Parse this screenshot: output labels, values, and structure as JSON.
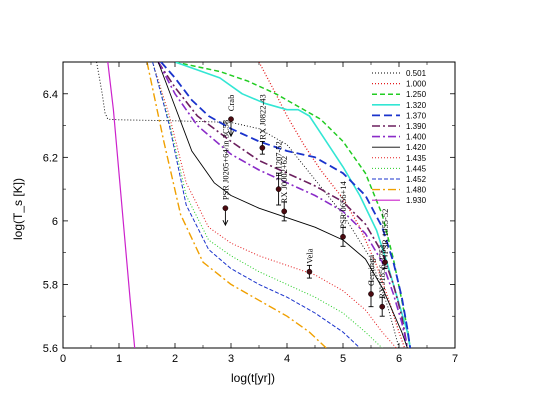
{
  "chart_data": {
    "type": "line",
    "xlabel": "log(t[yr])",
    "ylabel": "log(T_s [K])",
    "xlim": [
      0,
      7
    ],
    "ylim": [
      5.6,
      6.5
    ],
    "xticks": [
      "0",
      "1",
      "2",
      "3",
      "4",
      "5",
      "6",
      "7"
    ],
    "yticks": [
      "5.6",
      "5.8",
      "6",
      "6.2",
      "6.4"
    ],
    "legend_position": "top-right",
    "series": [
      {
        "name": "0.501",
        "color": "#000000",
        "dash": "1,2",
        "width": 0.9,
        "x": [
          0.6,
          0.7,
          0.75,
          0.8,
          1.0,
          2.0,
          3.0,
          3.5,
          4.0,
          4.5,
          5.0,
          5.5,
          5.8,
          6.0
        ],
        "y": [
          6.5,
          6.4,
          6.34,
          6.32,
          6.318,
          6.315,
          6.31,
          6.29,
          6.24,
          6.13,
          6.02,
          5.88,
          5.73,
          5.6
        ]
      },
      {
        "name": "1.000",
        "color": "#e41a1c",
        "dash": "1,2",
        "width": 1.3,
        "x": [
          3.5,
          3.8,
          4.0,
          4.3,
          4.6,
          5.0,
          5.3,
          5.6,
          5.8,
          6.0,
          6.1
        ],
        "y": [
          6.5,
          6.4,
          6.33,
          6.24,
          6.16,
          6.07,
          5.98,
          5.86,
          5.76,
          5.65,
          5.6
        ]
      },
      {
        "name": "1.250",
        "color": "#22cc22",
        "dash": "5,3",
        "width": 1.5,
        "x": [
          2.0,
          2.8,
          3.3,
          3.8,
          4.2,
          4.6,
          5.0,
          5.4,
          5.7,
          5.9,
          6.05,
          6.15,
          6.2
        ],
        "y": [
          6.5,
          6.47,
          6.44,
          6.4,
          6.36,
          6.32,
          6.25,
          6.15,
          6.02,
          5.88,
          5.75,
          5.66,
          5.6
        ]
      },
      {
        "name": "1.320",
        "color": "#33e6d4",
        "dash": "",
        "width": 1.6,
        "x": [
          2.0,
          2.8,
          3.2,
          3.6,
          4.0,
          4.2,
          4.4,
          4.7,
          5.0,
          5.3,
          5.6,
          5.8,
          6.0,
          6.15,
          6.2
        ],
        "y": [
          6.5,
          6.45,
          6.4,
          6.37,
          6.35,
          6.35,
          6.33,
          6.25,
          6.17,
          6.08,
          5.97,
          5.86,
          5.74,
          5.65,
          5.6
        ]
      },
      {
        "name": "1.370",
        "color": "#1a33cc",
        "dash": "8,4",
        "width": 1.8,
        "x": [
          1.75,
          2.0,
          2.3,
          2.6,
          3.0,
          3.5,
          4.0,
          4.5,
          5.0,
          5.4,
          5.7,
          5.9,
          6.05,
          6.15,
          6.2
        ],
        "y": [
          6.5,
          6.45,
          6.38,
          6.33,
          6.29,
          6.25,
          6.22,
          6.2,
          6.15,
          6.08,
          5.98,
          5.87,
          5.76,
          5.66,
          5.6
        ]
      },
      {
        "name": "1.390",
        "color": "#6b1f5e",
        "dash": "8,3,2,3",
        "width": 1.6,
        "x": [
          1.7,
          2.0,
          2.4,
          3.0,
          3.5,
          4.0,
          4.5,
          5.0,
          5.4,
          5.7,
          5.9,
          6.05,
          6.15
        ],
        "y": [
          6.5,
          6.42,
          6.33,
          6.25,
          6.19,
          6.15,
          6.11,
          6.06,
          5.99,
          5.9,
          5.8,
          5.7,
          5.6
        ]
      },
      {
        "name": "1.400",
        "color": "#8a2bc8",
        "dash": "8,3,2,3",
        "width": 1.6,
        "x": [
          1.7,
          2.0,
          2.4,
          3.0,
          3.5,
          4.0,
          4.5,
          5.0,
          5.4,
          5.7,
          5.9,
          6.05,
          6.15
        ],
        "y": [
          6.5,
          6.4,
          6.3,
          6.21,
          6.16,
          6.12,
          6.08,
          6.03,
          5.96,
          5.87,
          5.77,
          5.68,
          5.6
        ]
      },
      {
        "name": "1.420",
        "color": "#000000",
        "dash": "",
        "width": 0.9,
        "x": [
          1.7,
          2.0,
          2.3,
          2.7,
          3.0,
          3.5,
          4.0,
          4.5,
          5.0,
          5.4,
          5.7,
          5.9,
          6.05,
          6.15
        ],
        "y": [
          6.5,
          6.36,
          6.22,
          6.12,
          6.08,
          6.04,
          6.01,
          5.98,
          5.94,
          5.88,
          5.79,
          5.71,
          5.65,
          5.6
        ]
      },
      {
        "name": "1.435",
        "color": "#e41a1c",
        "dash": "1,2",
        "width": 1.0,
        "x": [
          1.6,
          1.9,
          2.2,
          2.6,
          3.0,
          3.5,
          4.0,
          4.5,
          5.0,
          5.4,
          5.7,
          5.95
        ],
        "y": [
          6.5,
          6.33,
          6.12,
          5.98,
          5.93,
          5.89,
          5.86,
          5.83,
          5.78,
          5.72,
          5.65,
          5.6
        ]
      },
      {
        "name": "1.445",
        "color": "#22cc22",
        "dash": "1,2",
        "width": 1.0,
        "x": [
          1.6,
          1.9,
          2.2,
          2.6,
          3.0,
          3.5,
          4.0,
          4.5,
          5.0,
          5.4,
          5.7
        ],
        "y": [
          6.5,
          6.31,
          6.08,
          5.94,
          5.89,
          5.84,
          5.8,
          5.76,
          5.71,
          5.65,
          5.6
        ]
      },
      {
        "name": "1.452",
        "color": "#1a33cc",
        "dash": "4,2",
        "width": 1.0,
        "x": [
          1.6,
          1.9,
          2.2,
          2.6,
          3.0,
          3.5,
          4.0,
          4.5,
          5.0,
          5.3
        ],
        "y": [
          6.5,
          6.3,
          6.05,
          5.91,
          5.85,
          5.8,
          5.76,
          5.71,
          5.65,
          5.6
        ]
      },
      {
        "name": "1.480",
        "color": "#f0a000",
        "dash": "8,3,2,3",
        "width": 1.4,
        "x": [
          1.5,
          1.8,
          2.1,
          2.5,
          3.0,
          3.5,
          4.0,
          4.4,
          4.7
        ],
        "y": [
          6.5,
          6.25,
          6.02,
          5.87,
          5.8,
          5.75,
          5.7,
          5.65,
          5.6
        ]
      },
      {
        "name": "1.930",
        "color": "#cc22cc",
        "dash": "",
        "width": 1.2,
        "x": [
          0.8,
          0.9,
          1.0,
          1.1,
          1.2,
          1.28
        ],
        "y": [
          6.5,
          6.35,
          6.15,
          5.95,
          5.75,
          5.6
        ]
      }
    ],
    "observations": [
      {
        "label": "Crab",
        "x": 3.0,
        "y": 6.32,
        "err": "upper"
      },
      {
        "label": "RX J0822-43",
        "x": 3.56,
        "y": 6.23,
        "err": 0.02
      },
      {
        "label": "1E 1207-52",
        "x": 3.85,
        "y": 6.1,
        "err": 0.05
      },
      {
        "label": "RX J0002+62",
        "x": 3.95,
        "y": 6.03,
        "err": 0.03
      },
      {
        "label": "PSR J0205+64/in 3C58",
        "x": 2.9,
        "y": 6.04,
        "err": "upper"
      },
      {
        "label": "Vela",
        "x": 4.4,
        "y": 5.84,
        "err": 0.02
      },
      {
        "label": "PSR 0656+14",
        "x": 5.0,
        "y": 5.95,
        "err": 0.03
      },
      {
        "label": "Geminga",
        "x": 5.5,
        "y": 5.77,
        "err": 0.04
      },
      {
        "label": "PSR 1055-52",
        "x": 5.75,
        "y": 5.87,
        "err": 0.02
      },
      {
        "label": "RX J1856-3754",
        "x": 5.7,
        "y": 5.73,
        "err": 0.03
      }
    ]
  }
}
